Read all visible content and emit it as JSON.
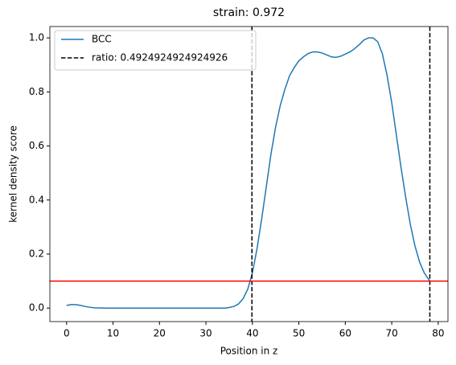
{
  "chart_data": {
    "type": "line",
    "title": "strain: 0.972",
    "xlabel": "Position in z",
    "ylabel": "kernel density score",
    "x": [
      0,
      1,
      2,
      3,
      4,
      5,
      6,
      8,
      10,
      15,
      20,
      25,
      30,
      34,
      35,
      36,
      37,
      38,
      39,
      40,
      41,
      42,
      43,
      44,
      45,
      46,
      47,
      48,
      49,
      50,
      51,
      52,
      53,
      54,
      55,
      56,
      57,
      58,
      59,
      60,
      61,
      62,
      63,
      64,
      65,
      66,
      67,
      68,
      69,
      70,
      71,
      72,
      73,
      74,
      75,
      76,
      77,
      78.2
    ],
    "series": [
      {
        "name": "BCC",
        "color": "#1f77b4",
        "values": [
          0.01,
          0.013,
          0.013,
          0.01,
          0.006,
          0.003,
          0.001,
          0,
          0,
          0,
          0,
          0,
          0,
          0,
          0.002,
          0.006,
          0.015,
          0.035,
          0.07,
          0.13,
          0.22,
          0.33,
          0.45,
          0.57,
          0.67,
          0.75,
          0.81,
          0.86,
          0.89,
          0.915,
          0.93,
          0.942,
          0.948,
          0.948,
          0.944,
          0.937,
          0.93,
          0.928,
          0.932,
          0.94,
          0.948,
          0.96,
          0.975,
          0.992,
          1.0,
          1.0,
          0.985,
          0.94,
          0.86,
          0.76,
          0.64,
          0.52,
          0.41,
          0.31,
          0.23,
          0.17,
          0.13,
          0.1
        ]
      }
    ],
    "vlines": {
      "name": "ratio: 0.4924924924924926",
      "color": "#000000",
      "values": [
        39.9,
        78.2
      ]
    },
    "hline": {
      "value": 0.1,
      "color": "#ff0000"
    },
    "xlim": [
      -3.6,
      82.1
    ],
    "ylim": [
      -0.05,
      1.042
    ],
    "xticks": [
      0,
      10,
      20,
      30,
      40,
      50,
      60,
      70,
      80
    ],
    "yticks": [
      {
        "value": 0,
        "label": "0.0"
      },
      {
        "value": 0.2,
        "label": "0.2"
      },
      {
        "value": 0.4,
        "label": "0.4"
      },
      {
        "value": 0.6,
        "label": "0.6"
      },
      {
        "value": 0.8,
        "label": "0.8"
      },
      {
        "value": 1,
        "label": "1.0"
      }
    ],
    "legend": "upper left"
  }
}
